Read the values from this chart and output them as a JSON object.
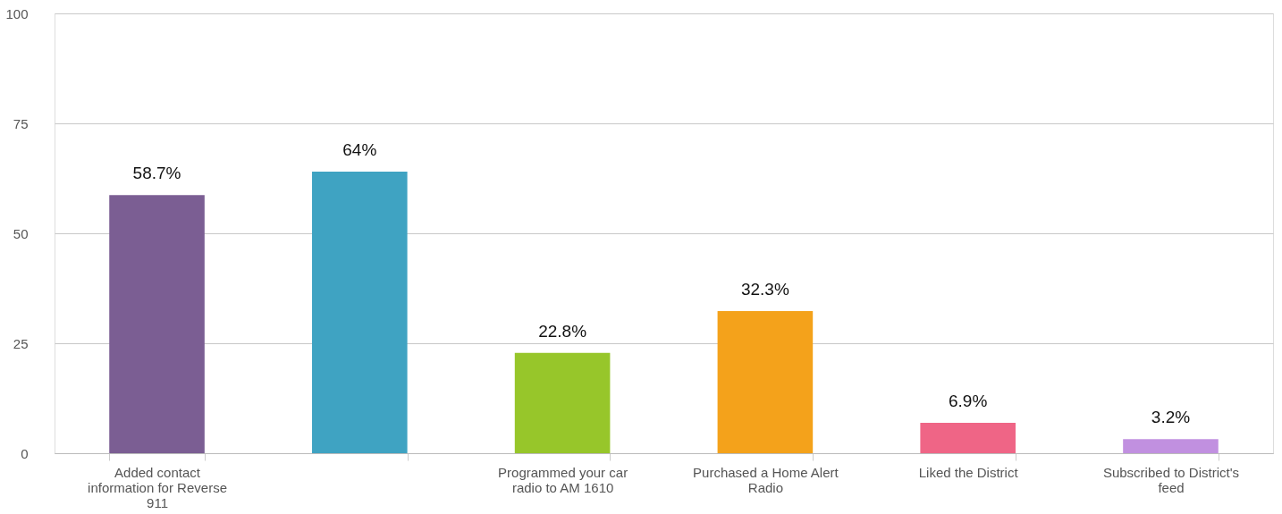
{
  "chart_data": {
    "type": "bar",
    "categories": [
      "Added contact information for Reverse 911",
      null,
      "Programmed your car radio to AM 1610",
      "Purchased a Home Alert Radio",
      "Liked the District",
      "Subscribed to District's feed"
    ],
    "values": [
      58.7,
      64,
      22.8,
      32.3,
      6.9,
      3.2
    ],
    "value_labels": [
      "58.7%",
      "64%",
      "22.8%",
      "32.3%",
      "6.9%",
      "3.2%"
    ],
    "colors": [
      "#7b5e93",
      "#3fa3c2",
      "#97c62a",
      "#f4a21b",
      "#ef6586",
      "#c190e0"
    ],
    "ylim": [
      0,
      100
    ],
    "yticks": [
      0,
      25,
      50,
      75,
      100
    ],
    "grid": "y",
    "legend": false
  }
}
